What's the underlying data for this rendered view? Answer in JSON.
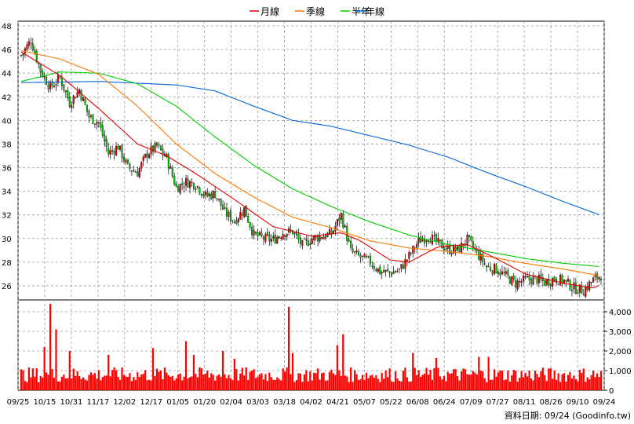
{
  "credit": "資料日期: 09/24 (Goodinfo.tw)",
  "colors": {
    "up": "#e00000",
    "down": "#00c000",
    "volume": "#ff0000",
    "month_ma": "#e00000",
    "quarter_ma": "#ff7700",
    "half_year_ma": "#00cc00",
    "year_ma": "#0066dd",
    "grid": "#9a9a9a"
  },
  "chart_data": {
    "type": "candlestick",
    "price_axis": {
      "ticks": [
        26,
        28,
        30,
        32,
        34,
        36,
        38,
        40,
        42,
        44,
        46,
        48
      ],
      "ylim": [
        24.8,
        48.4
      ]
    },
    "volume_axis": {
      "ticks": [
        0,
        1000,
        2000,
        3000,
        4000
      ],
      "tick_labels": [
        "0",
        "1,000",
        "2,000",
        "3,000",
        "4,000"
      ],
      "ylim": [
        0,
        4600
      ]
    },
    "x_tick_labels": [
      "09/25",
      "10/15",
      "10/31",
      "11/17",
      "12/02",
      "12/17",
      "01/05",
      "01/20",
      "02/04",
      "03/03",
      "03/18",
      "04/02",
      "04/21",
      "05/07",
      "05/22",
      "06/08",
      "06/24",
      "07/09",
      "07/27",
      "08/11",
      "08/26",
      "09/10",
      "09/24"
    ],
    "legend": [
      {
        "label": "月線",
        "color": "#e00000"
      },
      {
        "label": "季線",
        "color": "#ff7700"
      },
      {
        "label": "半年",
        "color": "#00cc00"
      },
      {
        "label": "年線",
        "color": "#0066dd"
      }
    ],
    "close_keypoints": [
      [
        0,
        45.5
      ],
      [
        5,
        46.8
      ],
      [
        10,
        44.2
      ],
      [
        15,
        42.8
      ],
      [
        20,
        43.6
      ],
      [
        25,
        41.5
      ],
      [
        30,
        42.6
      ],
      [
        35,
        40.3
      ],
      [
        40,
        39.8
      ],
      [
        45,
        37.2
      ],
      [
        50,
        37.8
      ],
      [
        55,
        36.0
      ],
      [
        60,
        35.6
      ],
      [
        65,
        37.2
      ],
      [
        70,
        37.8
      ],
      [
        75,
        36.8
      ],
      [
        80,
        34.3
      ],
      [
        85,
        34.8
      ],
      [
        90,
        34.6
      ],
      [
        95,
        33.6
      ],
      [
        100,
        33.8
      ],
      [
        105,
        32.2
      ],
      [
        110,
        31.5
      ],
      [
        115,
        32.5
      ],
      [
        120,
        30.3
      ],
      [
        125,
        30.0
      ],
      [
        130,
        29.9
      ],
      [
        135,
        30.5
      ],
      [
        140,
        30.6
      ],
      [
        145,
        29.4
      ],
      [
        150,
        30.0
      ],
      [
        155,
        30.2
      ],
      [
        160,
        30.4
      ],
      [
        165,
        32.0
      ],
      [
        170,
        28.9
      ],
      [
        175,
        28.4
      ],
      [
        180,
        28.0
      ],
      [
        185,
        27.2
      ],
      [
        190,
        27.1
      ],
      [
        195,
        27.3
      ],
      [
        200,
        28.5
      ],
      [
        205,
        29.8
      ],
      [
        210,
        30.2
      ],
      [
        215,
        29.6
      ],
      [
        220,
        29.1
      ],
      [
        225,
        29.0
      ],
      [
        230,
        29.9
      ],
      [
        235,
        28.8
      ],
      [
        240,
        27.6
      ],
      [
        245,
        27.4
      ],
      [
        250,
        26.8
      ],
      [
        255,
        26.2
      ],
      [
        260,
        26.5
      ],
      [
        265,
        26.6
      ],
      [
        270,
        26.3
      ],
      [
        275,
        26.6
      ],
      [
        280,
        26.4
      ],
      [
        285,
        25.8
      ],
      [
        290,
        25.6
      ],
      [
        295,
        26.5
      ],
      [
        300,
        27.0
      ]
    ],
    "moving_averages": {
      "month": [
        [
          0,
          45.8
        ],
        [
          20,
          43.8
        ],
        [
          40,
          41.0
        ],
        [
          60,
          38.0
        ],
        [
          75,
          37.0
        ],
        [
          90,
          35.5
        ],
        [
          110,
          33.3
        ],
        [
          130,
          31.0
        ],
        [
          150,
          30.2
        ],
        [
          165,
          30.5
        ],
        [
          175,
          29.8
        ],
        [
          190,
          28.2
        ],
        [
          200,
          28.0
        ],
        [
          215,
          29.3
        ],
        [
          230,
          29.5
        ],
        [
          245,
          28.3
        ],
        [
          260,
          27.0
        ],
        [
          280,
          26.2
        ],
        [
          295,
          25.8
        ],
        [
          300,
          26.2
        ]
      ],
      "quarter": [
        [
          0,
          45.9
        ],
        [
          20,
          45.2
        ],
        [
          40,
          43.9
        ],
        [
          60,
          41.2
        ],
        [
          80,
          38.0
        ],
        [
          100,
          35.5
        ],
        [
          120,
          33.5
        ],
        [
          140,
          31.8
        ],
        [
          160,
          30.9
        ],
        [
          180,
          29.8
        ],
        [
          200,
          29.2
        ],
        [
          220,
          28.9
        ],
        [
          240,
          28.5
        ],
        [
          260,
          27.9
        ],
        [
          280,
          27.4
        ],
        [
          300,
          26.8
        ]
      ],
      "half_year": [
        [
          0,
          43.3
        ],
        [
          20,
          44.1
        ],
        [
          40,
          44.0
        ],
        [
          60,
          43.1
        ],
        [
          80,
          41.2
        ],
        [
          100,
          38.6
        ],
        [
          120,
          36.2
        ],
        [
          140,
          34.2
        ],
        [
          160,
          32.7
        ],
        [
          180,
          31.4
        ],
        [
          200,
          30.3
        ],
        [
          220,
          29.5
        ],
        [
          240,
          28.9
        ],
        [
          260,
          28.3
        ],
        [
          280,
          27.9
        ],
        [
          300,
          27.6
        ]
      ],
      "year": [
        [
          0,
          43.2
        ],
        [
          40,
          43.3
        ],
        [
          80,
          43.0
        ],
        [
          100,
          42.5
        ],
        [
          120,
          41.2
        ],
        [
          140,
          40.0
        ],
        [
          160,
          39.5
        ],
        [
          180,
          38.7
        ],
        [
          200,
          37.9
        ],
        [
          220,
          36.9
        ],
        [
          240,
          35.6
        ],
        [
          260,
          34.4
        ],
        [
          280,
          33.1
        ],
        [
          300,
          31.9
        ]
      ]
    },
    "volume_spikes": [
      [
        12,
        2200
      ],
      [
        15,
        4400
      ],
      [
        18,
        3100
      ],
      [
        25,
        2000
      ],
      [
        45,
        1800
      ],
      [
        68,
        2150
      ],
      [
        85,
        2500
      ],
      [
        89,
        1800
      ],
      [
        104,
        2000
      ],
      [
        110,
        1600
      ],
      [
        138,
        4250
      ],
      [
        140,
        1900
      ],
      [
        163,
        2300
      ],
      [
        166,
        2850
      ],
      [
        202,
        1900
      ],
      [
        214,
        1650
      ],
      [
        236,
        1700
      ],
      [
        241,
        1700
      ]
    ],
    "volume_base": 900,
    "bar_count": 300
  }
}
